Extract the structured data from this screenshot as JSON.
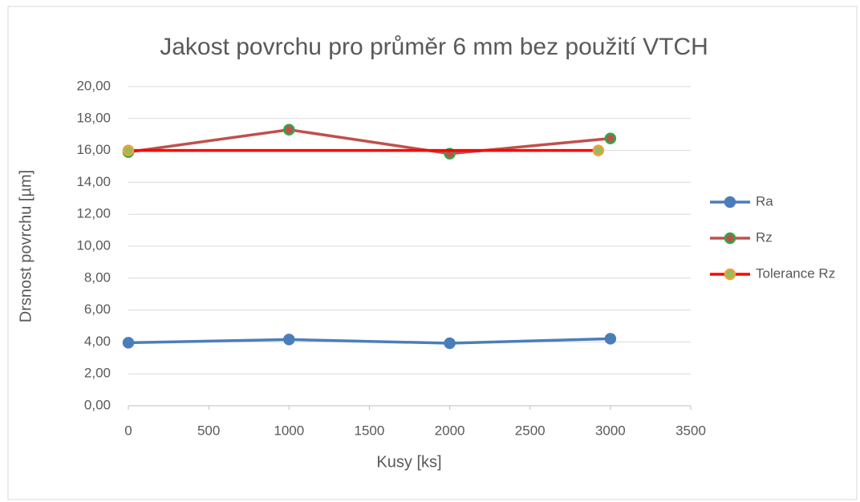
{
  "chart_data": {
    "type": "line",
    "title": "Jakost povrchu pro průměr 6 mm bez použití VTCH",
    "xlabel": "Kusy [ks]",
    "ylabel": "Drsnost povrchu [µm]",
    "series": [
      {
        "name": "Ra",
        "color": "#4a7ebb",
        "marker_fill": "#4a7ebb",
        "marker_stroke": "#4a7ebb",
        "x": [
          0,
          1000,
          2000,
          3000
        ],
        "values": [
          3.95,
          4.15,
          3.92,
          4.2
        ]
      },
      {
        "name": "Rz",
        "color": "#c0504d",
        "marker_fill": "#c0504d",
        "marker_stroke": "#2ea843",
        "x": [
          0,
          1000,
          2000,
          3000
        ],
        "values": [
          15.9,
          17.3,
          15.8,
          16.75
        ]
      },
      {
        "name": "Tolerance Rz",
        "color": "#ff0000",
        "marker_fill": "#9bbb59",
        "marker_stroke": "#e8a33d",
        "x": [
          0,
          2925
        ],
        "values": [
          16,
          16
        ]
      }
    ],
    "xlim": [
      0,
      3500
    ],
    "xticks": [
      0,
      500,
      1000,
      1500,
      2000,
      2500,
      3000,
      3500
    ],
    "ylim": [
      0,
      20
    ],
    "yticks": [
      {
        "value": 0,
        "label": "0,00"
      },
      {
        "value": 2,
        "label": "2,00"
      },
      {
        "value": 4,
        "label": "4,00"
      },
      {
        "value": 6,
        "label": "6,00"
      },
      {
        "value": 8,
        "label": "8,00"
      },
      {
        "value": 10,
        "label": "10,00"
      },
      {
        "value": 12,
        "label": "12,00"
      },
      {
        "value": 14,
        "label": "14,00"
      },
      {
        "value": 16,
        "label": "16,00"
      },
      {
        "value": 18,
        "label": "18,00"
      },
      {
        "value": 20,
        "label": "20,00"
      }
    ],
    "grid": true,
    "legend": "right"
  }
}
